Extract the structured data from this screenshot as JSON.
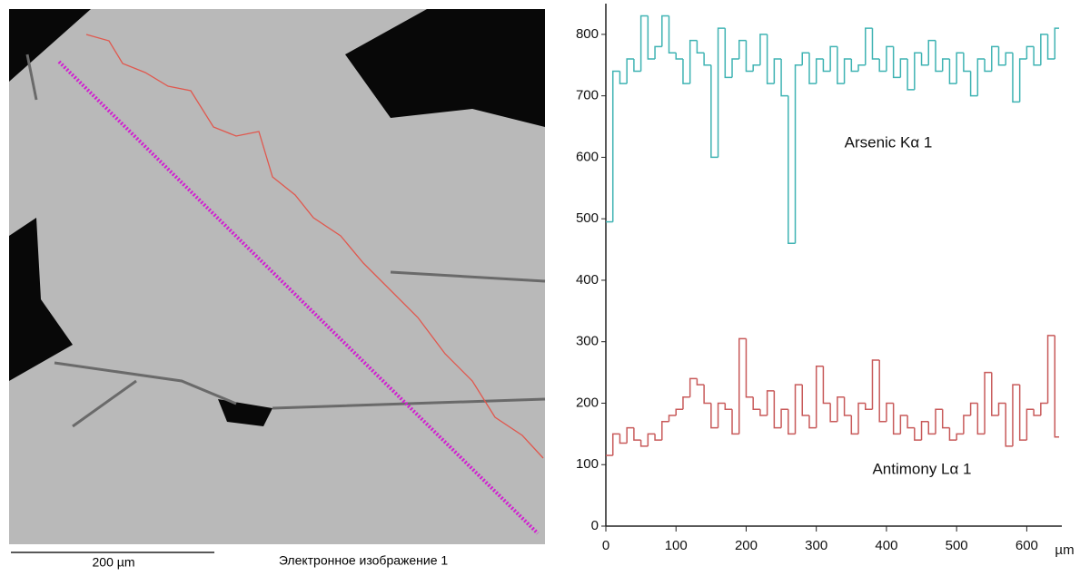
{
  "image": {
    "scale_label": "200 µm",
    "caption": "Электронное изображение 1"
  },
  "chart_data": {
    "type": "step",
    "x": [
      0,
      10,
      20,
      30,
      40,
      50,
      60,
      70,
      80,
      90,
      100,
      110,
      120,
      130,
      140,
      150,
      160,
      170,
      180,
      190,
      200,
      210,
      220,
      230,
      240,
      250,
      260,
      270,
      280,
      290,
      300,
      310,
      320,
      330,
      340,
      350,
      360,
      370,
      380,
      390,
      400,
      410,
      420,
      430,
      440,
      450,
      460,
      470,
      480,
      490,
      500,
      510,
      520,
      530,
      540,
      550,
      560,
      570,
      580,
      590,
      600,
      610,
      620,
      630,
      640
    ],
    "series": [
      {
        "name": "Arsenic Kα 1",
        "color": "#3fb3b3",
        "values": [
          495,
          740,
          720,
          760,
          740,
          830,
          760,
          780,
          830,
          770,
          760,
          720,
          790,
          770,
          750,
          600,
          810,
          730,
          760,
          790,
          740,
          750,
          800,
          720,
          760,
          700,
          460,
          750,
          770,
          720,
          760,
          740,
          780,
          720,
          760,
          740,
          750,
          810,
          760,
          740,
          780,
          730,
          760,
          710,
          770,
          750,
          790,
          740,
          760,
          720,
          770,
          740,
          700,
          760,
          740,
          780,
          750,
          770,
          690,
          760,
          780,
          750,
          800,
          760,
          810
        ]
      },
      {
        "name": "Antimony Lα 1",
        "color": "#c85a5a",
        "values": [
          115,
          150,
          135,
          160,
          140,
          130,
          150,
          140,
          170,
          180,
          190,
          210,
          240,
          230,
          200,
          160,
          200,
          190,
          150,
          305,
          210,
          190,
          180,
          220,
          160,
          190,
          150,
          230,
          180,
          160,
          260,
          200,
          170,
          210,
          180,
          150,
          200,
          190,
          270,
          170,
          200,
          150,
          180,
          160,
          140,
          170,
          150,
          190,
          160,
          140,
          150,
          180,
          200,
          150,
          250,
          180,
          200,
          130,
          230,
          140,
          190,
          180,
          200,
          310,
          145
        ]
      }
    ],
    "xlim": [
      0,
      650
    ],
    "ylim": [
      0,
      850
    ],
    "xticks": [
      0,
      100,
      200,
      300,
      400,
      500,
      600
    ],
    "yticks": [
      0,
      100,
      200,
      300,
      400,
      500,
      600,
      700,
      800
    ],
    "xlabel": "µm"
  }
}
